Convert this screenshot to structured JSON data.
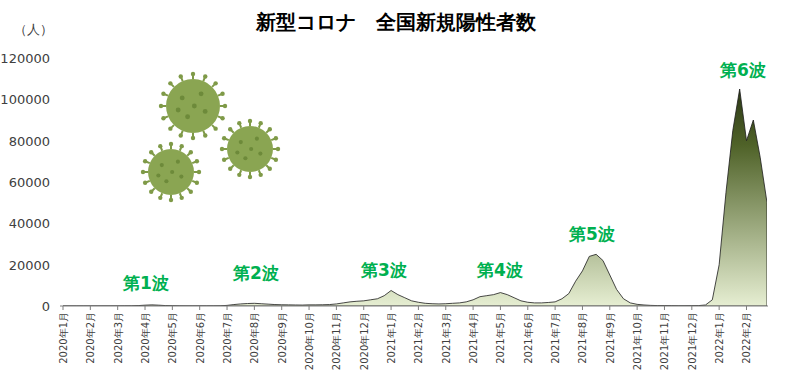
{
  "chart_data": {
    "type": "area",
    "title": "新型コロナ　全国新規陽性者数",
    "y_label": "（人）",
    "categories": [
      "2020年1月",
      null,
      null,
      null,
      "2020年2月",
      null,
      null,
      null,
      "2020年3月",
      null,
      null,
      null,
      "2020年4月",
      null,
      null,
      null,
      "2020年5月",
      null,
      null,
      null,
      "2020年6月",
      null,
      null,
      null,
      "2020年7月",
      null,
      null,
      null,
      "2020年8月",
      null,
      null,
      null,
      "2020年9月",
      null,
      null,
      null,
      "2020年10月",
      null,
      null,
      null,
      "2020年11月",
      null,
      null,
      null,
      "2020年12月",
      null,
      null,
      null,
      "2021年1月",
      null,
      null,
      null,
      "2021年2月",
      null,
      null,
      null,
      "2021年3月",
      null,
      null,
      null,
      "2021年4月",
      null,
      null,
      null,
      "2021年5月",
      null,
      null,
      null,
      "2021年6月",
      null,
      null,
      null,
      "2021年7月",
      null,
      null,
      null,
      "2021年8月",
      null,
      null,
      null,
      "2021年9月",
      null,
      null,
      null,
      "2021年10月",
      null,
      null,
      null,
      "2021年11月",
      null,
      null,
      null,
      "2021年12月",
      null,
      null,
      null,
      "2022年1月",
      null,
      null,
      null,
      "2022年2月",
      null,
      null,
      null
    ],
    "values": [
      0,
      0,
      0,
      0,
      0,
      0,
      5,
      10,
      20,
      40,
      60,
      200,
      400,
      550,
      400,
      200,
      100,
      50,
      30,
      20,
      40,
      40,
      50,
      80,
      300,
      700,
      1000,
      1200,
      1300,
      1100,
      900,
      700,
      600,
      550,
      500,
      450,
      550,
      550,
      600,
      700,
      1000,
      1500,
      2000,
      2300,
      2500,
      3000,
      3500,
      5000,
      7500,
      5500,
      4000,
      2500,
      1800,
      1300,
      1100,
      1000,
      1100,
      1300,
      1500,
      2000,
      3000,
      4500,
      5000,
      5500,
      6500,
      5500,
      4000,
      2500,
      1800,
      1500,
      1500,
      1700,
      2000,
      3500,
      6000,
      12000,
      17000,
      24000,
      25000,
      22000,
      15000,
      8000,
      3500,
      1500,
      800,
      500,
      300,
      200,
      200,
      150,
      100,
      100,
      150,
      200,
      500,
      3000,
      20000,
      55000,
      85000,
      105000,
      80000,
      90000,
      72000,
      50000
    ],
    "color": "#4f6228",
    "ylim": [
      0,
      120000
    ],
    "yticks": [
      0,
      20000,
      40000,
      60000,
      80000,
      100000,
      120000
    ],
    "grid": false,
    "annotations": [
      "第1波",
      "第2波",
      "第3波",
      "第4波",
      "第5波",
      "第6波"
    ]
  }
}
